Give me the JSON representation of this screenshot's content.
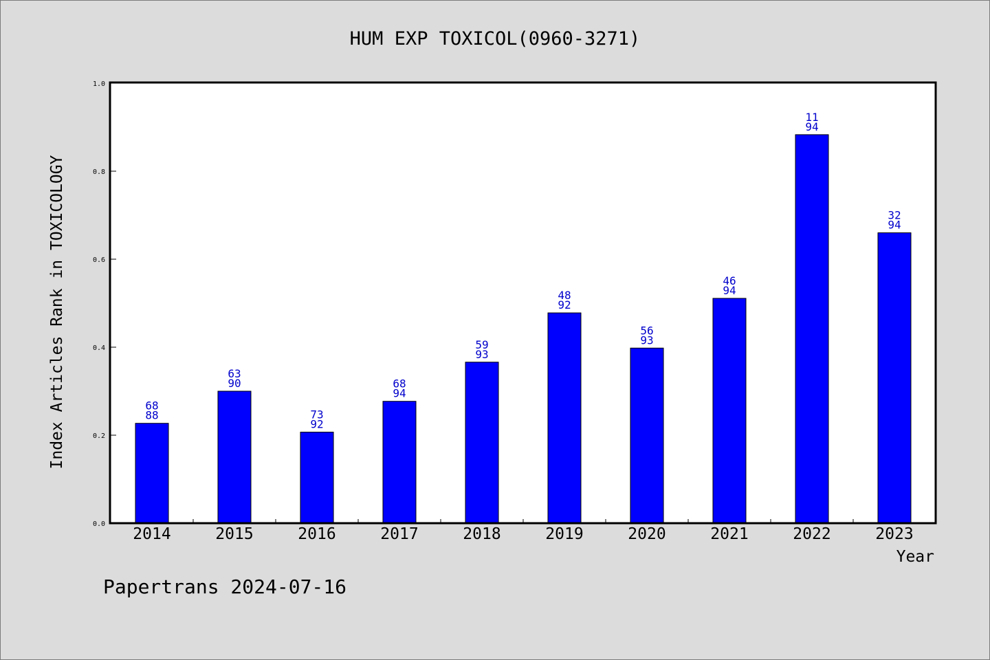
{
  "chart_data": {
    "type": "bar",
    "title": "HUM EXP TOXICOL(0960-3271)",
    "xlabel": "Year",
    "ylabel": "Index Articles Rank in TOXICOLOGY",
    "ylim": [
      0,
      1.0
    ],
    "yticks": [
      "0.0",
      "0.2",
      "0.4",
      "0.6",
      "0.8",
      "1.0"
    ],
    "categories": [
      "2014",
      "2015",
      "2016",
      "2017",
      "2018",
      "2019",
      "2020",
      "2021",
      "2022",
      "2023"
    ],
    "values": [
      0.227,
      0.3,
      0.207,
      0.277,
      0.366,
      0.478,
      0.398,
      0.511,
      0.883,
      0.66
    ],
    "rank": [
      "68",
      "63",
      "73",
      "68",
      "59",
      "48",
      "56",
      "46",
      "11",
      "32"
    ],
    "total": [
      "88",
      "90",
      "92",
      "94",
      "93",
      "92",
      "93",
      "94",
      "94",
      "94"
    ],
    "bar_color": "#0000ff",
    "label_color": "#0000cc",
    "grid": false,
    "legend": "none"
  },
  "footer": "Papertrans 2024-07-16"
}
